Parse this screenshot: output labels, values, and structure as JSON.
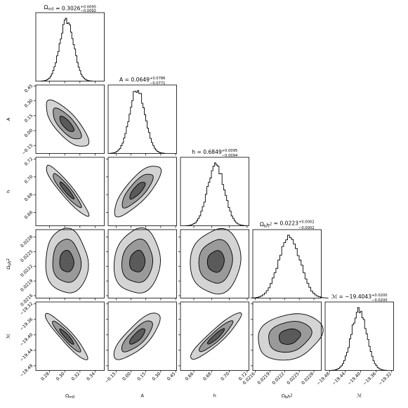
{
  "chart_data": {
    "type": "corner",
    "params": [
      {
        "key": "om",
        "label": "Ω_m0",
        "label_main": "Ω",
        "label_sub": "m0",
        "label_sup": "",
        "title_main": "Ω",
        "title_sub": "m0",
        "title_sup": "",
        "title_value": "0.3026",
        "title_err_plus": "+0.0095",
        "title_err_minus": "−0.0092",
        "mean": 0.3026,
        "sigma": 0.0093,
        "range": [
          0.262,
          0.352
        ],
        "ticks": [
          0.28,
          0.3,
          0.32,
          0.34
        ],
        "tick_labels": [
          "0.28",
          "0.30",
          "0.32",
          "0.34"
        ]
      },
      {
        "key": "A",
        "label": "A",
        "label_main": "A",
        "label_sub": "",
        "label_sup": "",
        "title_main": "A",
        "title_sub": "",
        "title_sup": "",
        "title_value": "0.0649",
        "title_err_plus": "+0.0786",
        "title_err_minus": "−0.0771",
        "mean": 0.0649,
        "sigma": 0.0778,
        "range": [
          -0.23,
          0.46
        ],
        "ticks": [
          -0.15,
          0.0,
          0.15,
          0.3,
          0.45
        ],
        "tick_labels": [
          "−0.15",
          "0.00",
          "0.15",
          "0.30",
          "0.45"
        ]
      },
      {
        "key": "h",
        "label": "h",
        "label_main": "h",
        "label_sub": "",
        "label_sup": "",
        "title_main": "h",
        "title_sub": "",
        "title_sup": "",
        "title_value": "0.6849",
        "title_err_plus": "+0.0095",
        "title_err_minus": "−0.0094",
        "mean": 0.6849,
        "sigma": 0.0095,
        "range": [
          0.645,
          0.722
        ],
        "ticks": [
          0.66,
          0.68,
          0.7,
          0.72
        ],
        "tick_labels": [
          "0.66",
          "0.68",
          "0.70",
          "0.72"
        ]
      },
      {
        "key": "obh2",
        "label": "Ω_b h^2",
        "label_main": "Ω",
        "label_sub": "b",
        "label_sup": "2",
        "title_main": "Ω",
        "title_sub": "b",
        "title_sup": "2",
        "title_value": "0.0223",
        "title_err_plus": "+0.0002",
        "title_err_minus": "−0.0002",
        "mean": 0.0223,
        "sigma": 0.00022,
        "range": [
          0.02155,
          0.02295
        ],
        "ticks": [
          0.0216,
          0.0219,
          0.0222,
          0.0225,
          0.0228
        ],
        "tick_labels": [
          "0.0216",
          "0.0219",
          "0.0222",
          "0.0225",
          "0.0228"
        ]
      },
      {
        "key": "M",
        "label": "ℳ",
        "label_main": "ℳ",
        "label_sub": "",
        "label_sup": "",
        "title_main": "ℳ",
        "title_sub": "",
        "title_sup": "",
        "title_value": "−19.4043",
        "title_err_plus": "+0.0200",
        "title_err_minus": "−0.0200",
        "mean": -19.4043,
        "sigma": 0.02,
        "range": [
          -19.492,
          -19.315
        ],
        "ticks": [
          -19.48,
          -19.44,
          -19.4,
          -19.36,
          -19.32
        ],
        "tick_labels": [
          "−19.48",
          "−19.44",
          "−19.40",
          "−19.36",
          "−19.32"
        ]
      }
    ],
    "correlations": {
      "1_0": -0.75,
      "2_0": -0.93,
      "2_1": 0.79,
      "3_0": -0.05,
      "3_1": 0.08,
      "3_2": 0.08,
      "4_0": -0.93,
      "4_1": 0.78,
      "4_2": 0.92,
      "4_3": 0.22
    },
    "contour_levels_sigma": [
      1,
      2,
      3
    ],
    "contour_fill_colors": [
      "#5a5a5a",
      "#9a9a9a",
      "#d4d4d4"
    ]
  }
}
